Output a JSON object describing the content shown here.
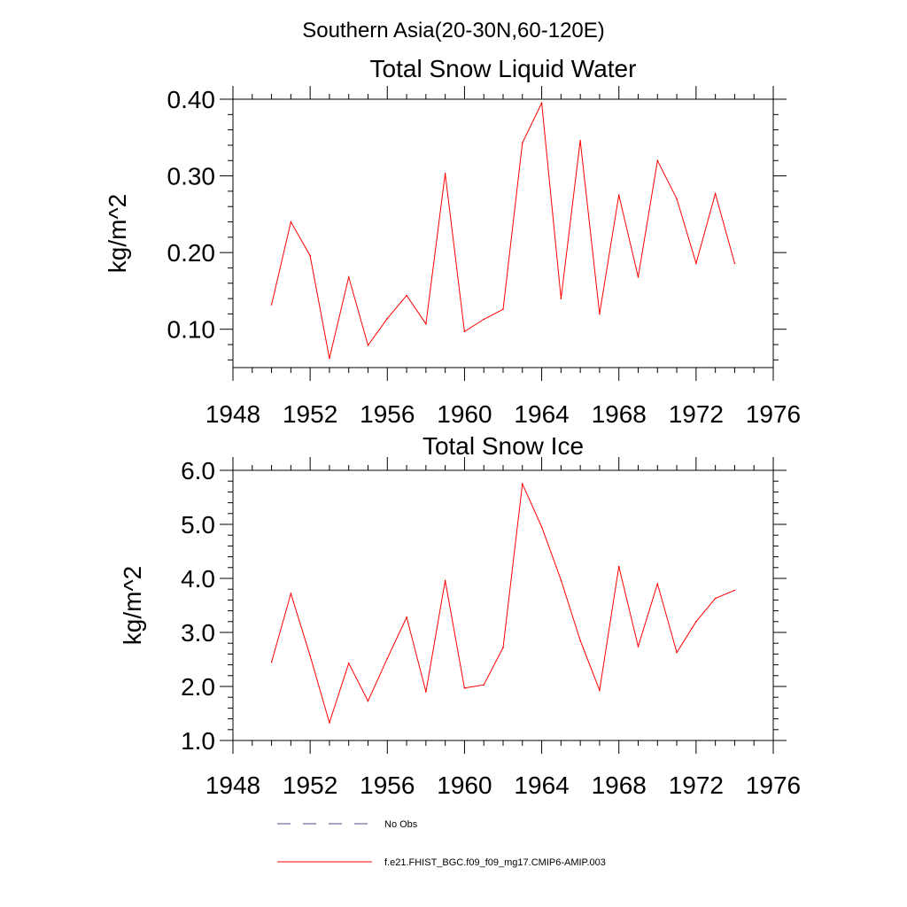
{
  "page_title": "Southern Asia(20-30N,60-120E)",
  "colors": {
    "series": "#ff0000",
    "obs": "#4a4a8a",
    "axis": "#000000"
  },
  "legend": {
    "obs_label": "No Obs",
    "model_label": "f.e21.FHIST_BGC.f09_f09_mg17.CMIP6-AMIP.003"
  },
  "chart_data": [
    {
      "type": "line",
      "title": "Total Snow Liquid Water",
      "xlabel": "",
      "ylabel": "kg/m^2",
      "xlim": [
        1948,
        1976
      ],
      "ylim": [
        0.05,
        0.4
      ],
      "xticks": [
        1948,
        1952,
        1956,
        1960,
        1964,
        1968,
        1972,
        1976
      ],
      "xtick_labels": [
        "1948",
        "1952",
        "1956",
        "1960",
        "1964",
        "1968",
        "1972",
        "1976"
      ],
      "yticks": [
        0.1,
        0.2,
        0.3,
        0.4
      ],
      "ytick_labels": [
        "0.10",
        "0.20",
        "0.30",
        "0.40"
      ],
      "grid": false,
      "series": [
        {
          "name": "f.e21.FHIST_BGC.f09_f09_mg17.CMIP6-AMIP.003",
          "x": [
            1950,
            1951,
            1952,
            1953,
            1954,
            1955,
            1956,
            1957,
            1958,
            1959,
            1960,
            1961,
            1962,
            1963,
            1964,
            1965,
            1966,
            1967,
            1968,
            1969,
            1970,
            1971,
            1972,
            1973,
            1974
          ],
          "values": [
            0.132,
            0.24,
            0.196,
            0.062,
            0.168,
            0.079,
            0.114,
            0.144,
            0.107,
            0.303,
            0.097,
            0.113,
            0.126,
            0.343,
            0.395,
            0.14,
            0.346,
            0.12,
            0.275,
            0.168,
            0.32,
            0.27,
            0.186,
            0.277,
            0.186
          ]
        }
      ]
    },
    {
      "type": "line",
      "title": "Total Snow Ice",
      "xlabel": "",
      "ylabel": "kg/m^2",
      "xlim": [
        1948,
        1976
      ],
      "ylim": [
        1.0,
        6.0
      ],
      "xticks": [
        1948,
        1952,
        1956,
        1960,
        1964,
        1968,
        1972,
        1976
      ],
      "xtick_labels": [
        "1948",
        "1952",
        "1956",
        "1960",
        "1964",
        "1968",
        "1972",
        "1976"
      ],
      "yticks": [
        1.0,
        2.0,
        3.0,
        4.0,
        5.0,
        6.0
      ],
      "ytick_labels": [
        "1.0",
        "2.0",
        "3.0",
        "4.0",
        "5.0",
        "6.0"
      ],
      "grid": false,
      "series": [
        {
          "name": "f.e21.FHIST_BGC.f09_f09_mg17.CMIP6-AMIP.003",
          "x": [
            1950,
            1951,
            1952,
            1953,
            1954,
            1955,
            1956,
            1957,
            1958,
            1959,
            1960,
            1961,
            1962,
            1963,
            1964,
            1965,
            1966,
            1967,
            1968,
            1969,
            1970,
            1971,
            1972,
            1973,
            1974
          ],
          "values": [
            2.45,
            3.72,
            2.57,
            1.33,
            2.43,
            1.73,
            2.52,
            3.28,
            1.9,
            3.96,
            1.97,
            2.03,
            2.72,
            5.75,
            4.95,
            3.97,
            2.85,
            1.93,
            4.22,
            2.74,
            3.9,
            2.63,
            3.2,
            3.63,
            3.78
          ]
        }
      ]
    }
  ]
}
